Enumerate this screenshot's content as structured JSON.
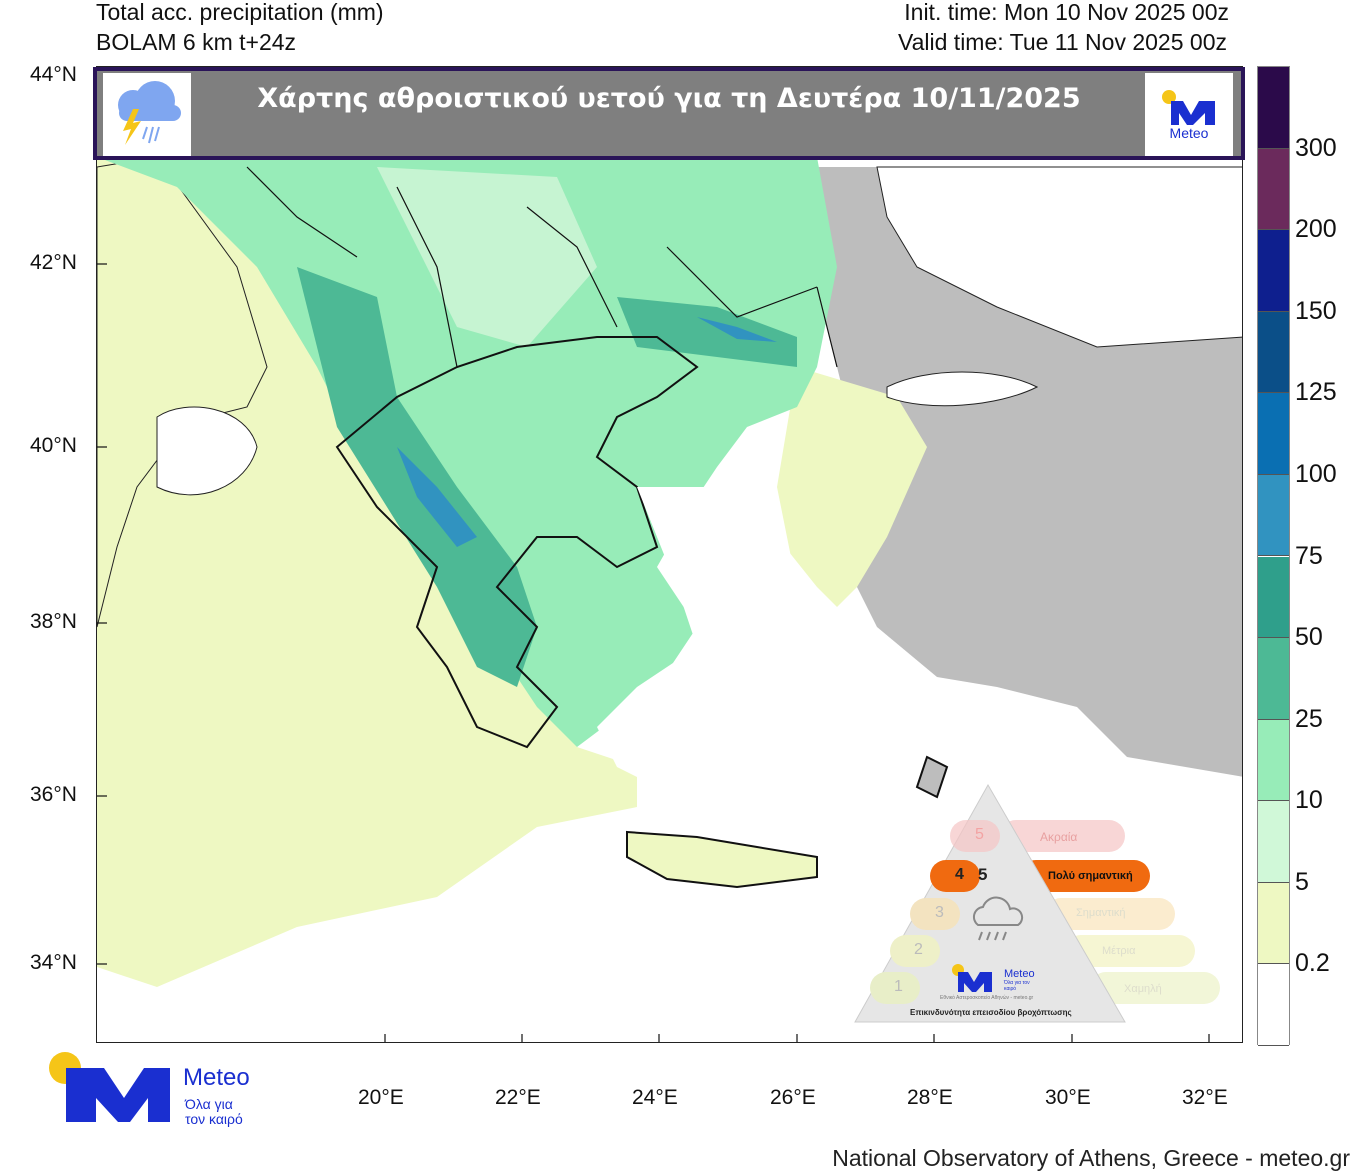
{
  "header": {
    "variable": "Total acc. precipitation (mm)",
    "model": "BOLAM 6 km t+24z",
    "init_time": "Init. time: Mon 10 Nov 2025 00z",
    "valid_time": "Valid time: Tue 11 Nov 2025 00z"
  },
  "banner": {
    "title": "Χάρτης αθροιστικού υετού για τη Δευτέρα 10/11/2025",
    "left_icon": "storm-rain-cloud-icon",
    "right_logo_text": "Meteo"
  },
  "axes": {
    "lat_ticks": [
      "44°N",
      "42°N",
      "40°N",
      "38°N",
      "36°N",
      "34°N"
    ],
    "lon_ticks": [
      "20°E",
      "22°E",
      "24°E",
      "26°E",
      "28°E",
      "30°E",
      "32°E"
    ]
  },
  "colorbar": {
    "labels": [
      "300",
      "200",
      "150",
      "125",
      "100",
      "75",
      "50",
      "25",
      "10",
      "5",
      "0.2"
    ],
    "colors": [
      "#2b0a4a",
      "#6b2a5c",
      "#0e1f8e",
      "#0b4f88",
      "#0a6fb2",
      "#3193c0",
      "#2f9f8b",
      "#4db995",
      "#97ecb8",
      "#d0f8d8",
      "#eef8c2",
      "#ffffff"
    ]
  },
  "hazard_pyramid": {
    "levels": [
      {
        "num": "5",
        "label": "Ακραία",
        "color": "#f5b5b5"
      },
      {
        "num": "4",
        "label": "Πολύ σημαντική",
        "color": "#f06a10"
      },
      {
        "num": "3",
        "label": "Σημαντική",
        "color": "#fbe6c2"
      },
      {
        "num": "2",
        "label": "Μέτρια",
        "color": "#f3f3c6"
      },
      {
        "num": "1",
        "label": "Χαμηλή",
        "color": "#eef3cc"
      }
    ],
    "active_level": 4,
    "logo_text": "Meteo",
    "logo_slogan": "Όλα για τον καιρό",
    "org_line": "Εθνικό Αστεροσκοπείο Αθηνών - meteo.gr",
    "caption": "Επικινδυνότητα επεισοδίου βροχόπτωσης"
  },
  "footer_logo": {
    "name": "Meteo",
    "slogan_1": "Όλα για",
    "slogan_2": "τον καιρό"
  },
  "credit": "National Observatory of Athens, Greece - meteo.gr"
}
